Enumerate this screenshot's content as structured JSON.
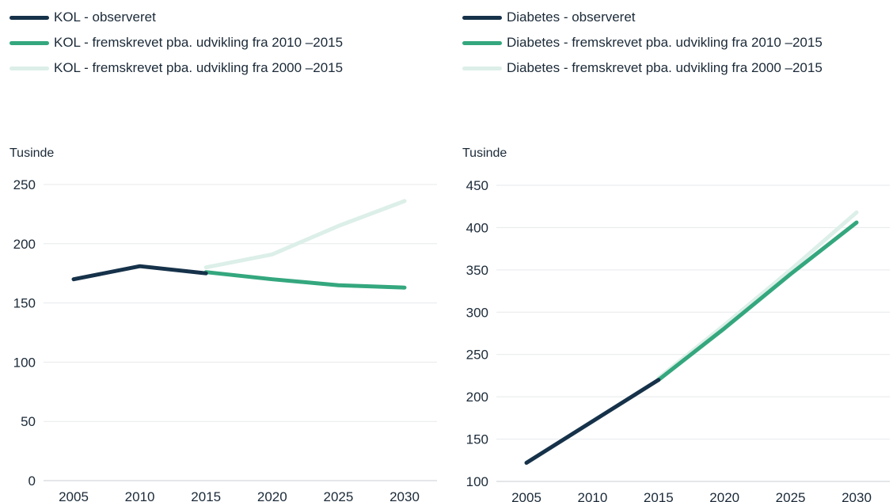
{
  "chart_data": [
    {
      "type": "line",
      "ylabel": "Tusinde",
      "ylim": [
        0,
        250
      ],
      "yticks": [
        0,
        50,
        100,
        150,
        200,
        250
      ],
      "xticks": [
        2005,
        2010,
        2015,
        2020,
        2025,
        2030
      ],
      "grid": true,
      "legend_position": "top-left",
      "series": [
        {
          "name": "KOL - observeret",
          "color": "#16324a",
          "x": [
            2005,
            2010,
            2015
          ],
          "values": [
            170,
            181,
            175
          ]
        },
        {
          "name": "KOL - fremskrevet pba. udvikling fra 2010 –2015",
          "color": "#34a77e",
          "x": [
            2015,
            2020,
            2025,
            2030
          ],
          "values": [
            176,
            170,
            165,
            163
          ]
        },
        {
          "name": "KOL - fremskrevet pba. udvikling fra 2000 –2015",
          "color": "#dcefe8",
          "x": [
            2015,
            2020,
            2025,
            2030
          ],
          "values": [
            180,
            191,
            215,
            236
          ]
        }
      ]
    },
    {
      "type": "line",
      "ylabel": "Tusinde",
      "ylim": [
        100,
        450
      ],
      "yticks": [
        100,
        150,
        200,
        250,
        300,
        350,
        400,
        450
      ],
      "xticks": [
        2005,
        2010,
        2015,
        2020,
        2025,
        2030
      ],
      "grid": true,
      "legend_position": "top-left",
      "series": [
        {
          "name": "Diabetes - observeret",
          "color": "#16324a",
          "x": [
            2005,
            2010,
            2015
          ],
          "values": [
            122,
            171,
            220
          ]
        },
        {
          "name": "Diabetes - fremskrevet pba. udvikling fra 2010 –2015",
          "color": "#34a77e",
          "x": [
            2015,
            2020,
            2025,
            2030
          ],
          "values": [
            220,
            281,
            345,
            406
          ]
        },
        {
          "name": "Diabetes - fremskrevet pba. udvikling fra 2000 –2015",
          "color": "#dcefe8",
          "x": [
            2015,
            2020,
            2025,
            2030
          ],
          "values": [
            222,
            285,
            350,
            418
          ]
        }
      ]
    }
  ]
}
